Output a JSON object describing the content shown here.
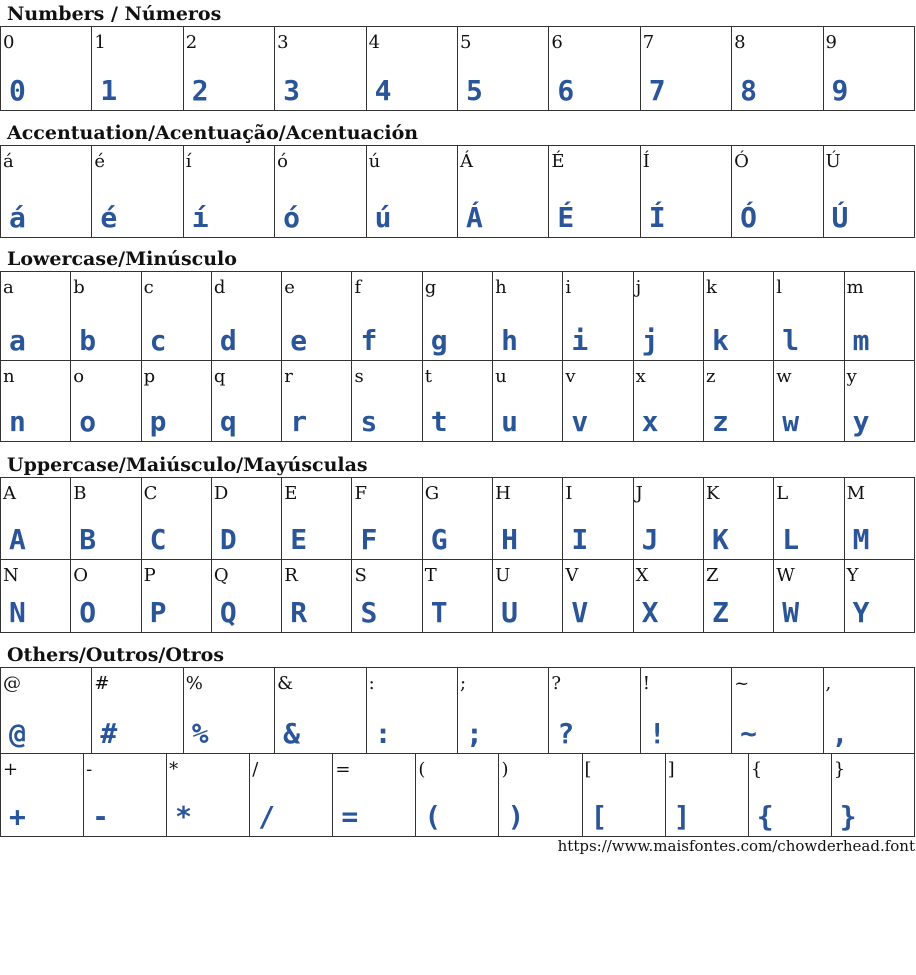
{
  "glyph_color": "#2a5599",
  "sections": [
    {
      "title": "Numbers / Números",
      "rows": [
        [
          "0",
          "1",
          "2",
          "3",
          "4",
          "5",
          "6",
          "7",
          "8",
          "9"
        ]
      ]
    },
    {
      "title": "Accentuation/Acentuação/Acentuación",
      "rows": [
        [
          "á",
          "é",
          "í",
          "ó",
          "ú",
          "Á",
          "É",
          "Í",
          "Ó",
          "Ú"
        ]
      ]
    },
    {
      "title": "Lowercase/Minúsculo",
      "rows": [
        [
          "a",
          "b",
          "c",
          "d",
          "e",
          "f",
          "g",
          "h",
          "i",
          "j",
          "k",
          "l",
          "m"
        ],
        [
          "n",
          "o",
          "p",
          "q",
          "r",
          "s",
          "t",
          "u",
          "v",
          "x",
          "z",
          "w",
          "y"
        ]
      ]
    },
    {
      "title": "Uppercase/Maiúsculo/Mayúsculas",
      "rows": [
        [
          "A",
          "B",
          "C",
          "D",
          "E",
          "F",
          "G",
          "H",
          "I",
          "J",
          "K",
          "L",
          "M"
        ],
        [
          "N",
          "O",
          "P",
          "Q",
          "R",
          "S",
          "T",
          "U",
          "V",
          "X",
          "Z",
          "W",
          "Y"
        ]
      ]
    },
    {
      "title": "Others/Outros/Otros",
      "rows": [
        [
          "@",
          "#",
          "%",
          "&",
          ":",
          ";",
          "?",
          "!",
          "~",
          ","
        ],
        [
          "+",
          "-",
          "*",
          "/",
          "=",
          "(",
          ")",
          "[",
          "]",
          "{",
          "}"
        ]
      ]
    }
  ],
  "footer": {
    "url": "https://www.maisfontes.com/chowderhead.font"
  }
}
